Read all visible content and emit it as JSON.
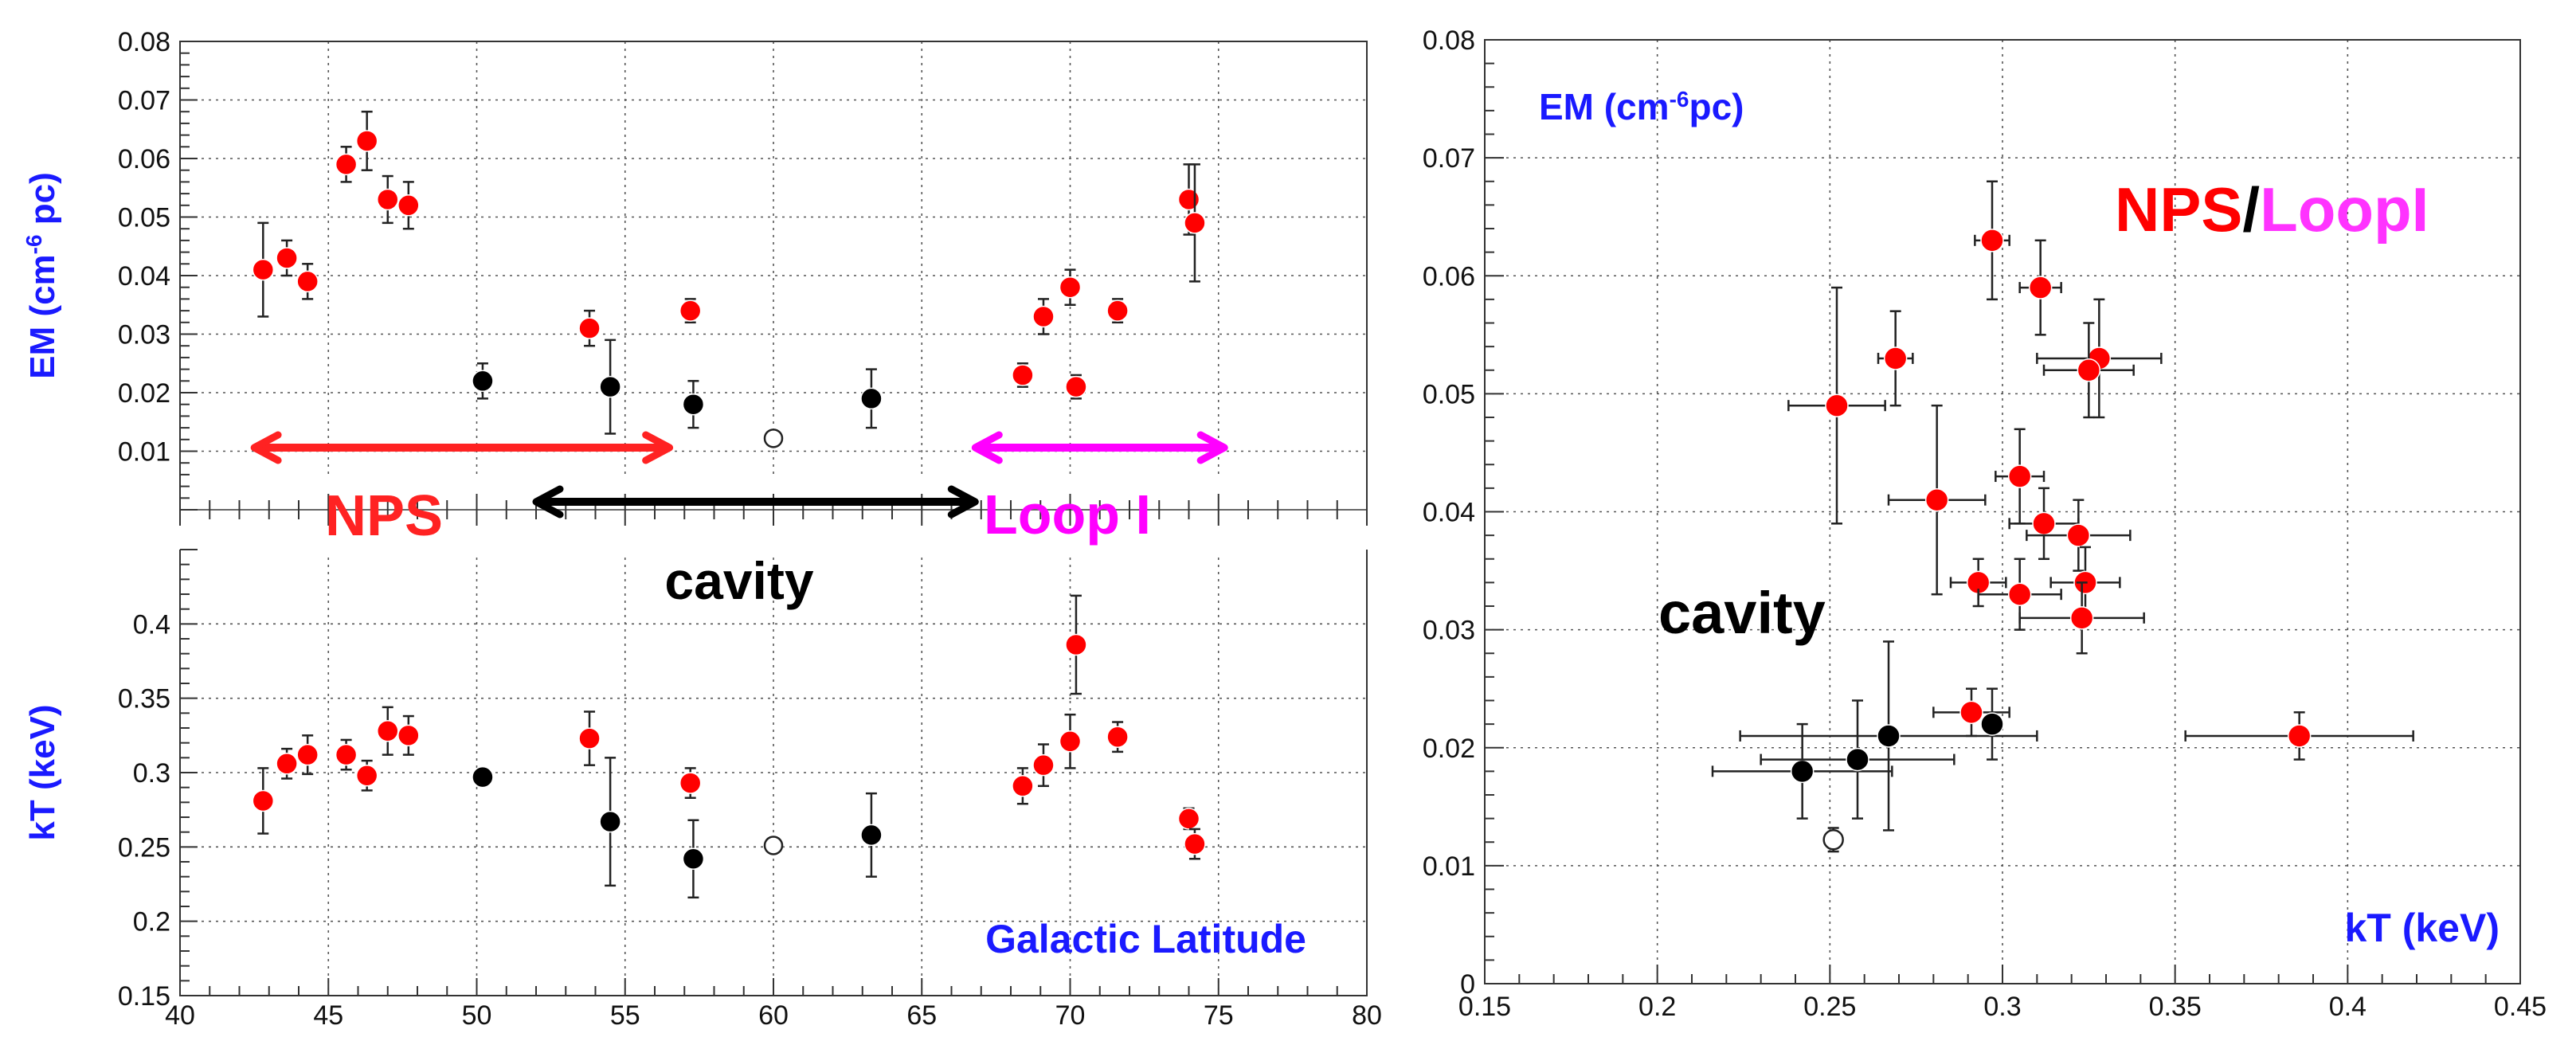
{
  "chart_data": [
    {
      "type": "scatter",
      "panel": "left",
      "title": "",
      "xlabel": "Galactic Latitude",
      "xlim": [
        40,
        80
      ],
      "x_ticks": [
        "40",
        "45",
        "50",
        "55",
        "60",
        "65",
        "70",
        "75",
        "80"
      ],
      "subplots": [
        {
          "name": "EM",
          "ylabel": "EM (cm-6 pc)",
          "ylabel_base": "EM (cm",
          "ylabel_sup": "-6",
          "ylabel_tail": " pc)",
          "ylim": [
            0,
            0.08
          ],
          "y_ticks": [
            "0.01",
            "0.02",
            "0.03",
            "0.04",
            "0.05",
            "0.06",
            "0.07",
            "0.08"
          ],
          "series": [
            {
              "group": "NPS/LoopI",
              "color": "#ff0000",
              "marker": "filled",
              "x": [
                42.8,
                43.6,
                44.3,
                45.6,
                46.3,
                47.0,
                47.7,
                53.8,
                57.2,
                68.4,
                69.1,
                70.0,
                70.2,
                71.6,
                74.0,
                74.2
              ],
              "y": [
                0.041,
                0.043,
                0.039,
                0.059,
                0.063,
                0.053,
                0.052,
                0.031,
                0.034,
                0.023,
                0.033,
                0.038,
                0.021,
                0.034,
                0.053,
                0.049
              ],
              "err": [
                0.008,
                0.003,
                0.003,
                0.003,
                0.005,
                0.004,
                0.004,
                0.003,
                0.002,
                0.002,
                0.003,
                0.003,
                0.002,
                0.002,
                0.006,
                0.01
              ]
            },
            {
              "group": "cavity",
              "color": "#000000",
              "marker": "filled",
              "x": [
                50.2,
                54.5,
                57.3,
                63.3
              ],
              "y": [
                0.022,
                0.021,
                0.018,
                0.019
              ],
              "err": [
                0.003,
                0.008,
                0.004,
                0.005
              ]
            },
            {
              "group": "cavity",
              "color": "#000000",
              "marker": "open",
              "x": [
                60.0
              ],
              "y": [
                0.0122
              ],
              "err": [
                0.001
              ]
            }
          ]
        },
        {
          "name": "kT",
          "ylabel": "kT (keV)",
          "ylim": [
            0.15,
            0.45
          ],
          "y_ticks": [
            "0.15",
            "0.2",
            "0.25",
            "0.3",
            "0.35",
            "0.4"
          ],
          "series": [
            {
              "group": "NPS/LoopI",
              "color": "#ff0000",
              "marker": "filled",
              "x": [
                42.8,
                43.6,
                44.3,
                45.6,
                46.3,
                47.0,
                47.7,
                53.8,
                57.2,
                68.4,
                69.1,
                70.0,
                70.2,
                71.6,
                74.0,
                74.2
              ],
              "y": [
                0.281,
                0.306,
                0.312,
                0.312,
                0.298,
                0.328,
                0.325,
                0.323,
                0.293,
                0.291,
                0.305,
                0.321,
                0.386,
                0.324,
                0.269,
                0.252
              ],
              "err": [
                0.022,
                0.01,
                0.013,
                0.01,
                0.01,
                0.016,
                0.013,
                0.018,
                0.01,
                0.012,
                0.014,
                0.018,
                0.033,
                0.01,
                0.007,
                0.01
              ]
            },
            {
              "group": "cavity",
              "color": "#000000",
              "marker": "filled",
              "x": [
                50.2,
                54.5,
                57.3,
                63.3
              ],
              "y": [
                0.297,
                0.267,
                0.242,
                0.258
              ],
              "err": [
                0.002,
                0.043,
                0.026,
                0.028
              ]
            },
            {
              "group": "cavity",
              "color": "#000000",
              "marker": "open",
              "x": [
                60.0
              ],
              "y": [
                0.251
              ],
              "err": [
                0.003
              ]
            }
          ]
        }
      ],
      "region_labels": [
        {
          "text": "NPS",
          "color": "#ff2222",
          "from": 42.5,
          "to": 56.5,
          "arrow_color": "#ff2222"
        },
        {
          "text": "cavity",
          "color": "#000000",
          "from": 52.0,
          "to": 66.8,
          "arrow_color": "#000000"
        },
        {
          "text": "Loop I",
          "color": "#ff00ff",
          "from": 66.8,
          "to": 75.2,
          "arrow_color": "#ff00ff"
        }
      ]
    },
    {
      "type": "scatter",
      "panel": "right",
      "title": "",
      "xlabel": "kT (keV)",
      "ylabel": "EM (cm-6pc)",
      "ylabel_base": "EM (cm",
      "ylabel_sup": "-6",
      "ylabel_tail": "pc)",
      "xlim": [
        0.15,
        0.45
      ],
      "ylim": [
        0,
        0.08
      ],
      "x_ticks": [
        "0.15",
        "0.2",
        "0.25",
        "0.3",
        "0.35",
        "0.4",
        "0.45"
      ],
      "y_ticks": [
        "0",
        "0.01",
        "0.02",
        "0.03",
        "0.04",
        "0.05",
        "0.06",
        "0.07",
        "0.08"
      ],
      "legend": {
        "part1": "NPS",
        "sep": "/",
        "part2": "LoopI",
        "color1": "#ff0000",
        "color2": "#ff33ff"
      },
      "annotation": "cavity",
      "series": [
        {
          "group": "NPS/LoopI",
          "color": "#ff0000",
          "marker": "filled",
          "x": [
            0.297,
            0.311,
            0.269,
            0.328,
            0.325,
            0.252,
            0.305,
            0.281,
            0.312,
            0.322,
            0.293,
            0.324,
            0.305,
            0.323,
            0.291,
            0.386
          ],
          "y": [
            0.063,
            0.059,
            0.053,
            0.053,
            0.052,
            0.049,
            0.043,
            0.041,
            0.039,
            0.038,
            0.034,
            0.034,
            0.033,
            0.031,
            0.023,
            0.021
          ],
          "xe": [
            0.005,
            0.006,
            0.005,
            0.018,
            0.013,
            0.014,
            0.007,
            0.014,
            0.01,
            0.015,
            0.008,
            0.01,
            0.012,
            0.018,
            0.011,
            0.033
          ],
          "ye": [
            0.005,
            0.004,
            0.004,
            0.005,
            0.004,
            0.01,
            0.004,
            0.008,
            0.003,
            0.003,
            0.002,
            0.003,
            0.003,
            0.003,
            0.002,
            0.002
          ]
        },
        {
          "group": "cavity",
          "color": "#000000",
          "marker": "filled",
          "x": [
            0.242,
            0.258,
            0.267,
            0.297
          ],
          "y": [
            0.018,
            0.019,
            0.021,
            0.022
          ],
          "xe": [
            0.026,
            0.028,
            0.043,
            0.002
          ],
          "ye": [
            0.004,
            0.005,
            0.008,
            0.003
          ]
        },
        {
          "group": "cavity",
          "color": "#000000",
          "marker": "open",
          "x": [
            0.251
          ],
          "y": [
            0.0122
          ],
          "xe": [
            0.0
          ],
          "ye": [
            0.001
          ]
        }
      ]
    }
  ]
}
